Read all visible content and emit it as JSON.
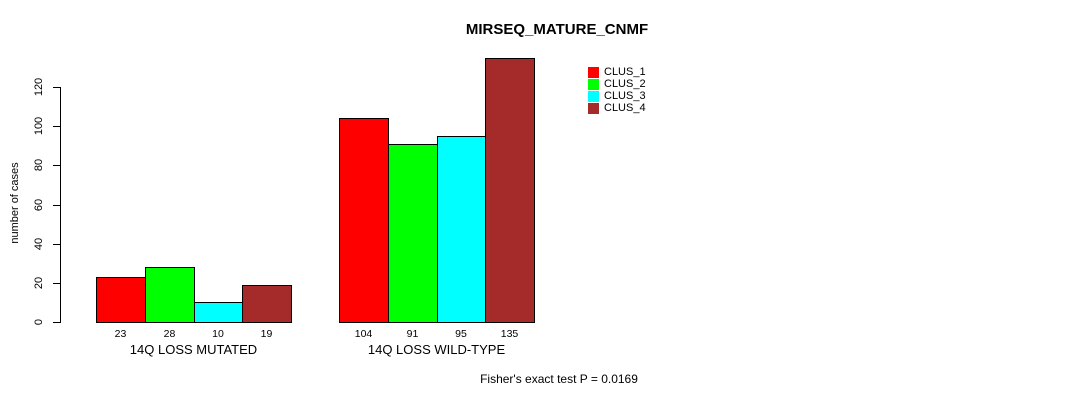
{
  "figure": {
    "background": "#ffffff",
    "axis_color": "#000000",
    "text_color": "#000000"
  },
  "chart_data": {
    "type": "bar",
    "title": "MIRSEQ_MATURE_CNMF",
    "xlabel": "",
    "ylabel": "number of cases",
    "categories": [
      "14Q LOSS MUTATED",
      "14Q LOSS WILD-TYPE"
    ],
    "series": [
      {
        "name": "CLUS_1",
        "color": "#ff0000",
        "values": [
          23,
          104
        ]
      },
      {
        "name": "CLUS_2",
        "color": "#00ff00",
        "values": [
          28,
          91
        ]
      },
      {
        "name": "CLUS_3",
        "color": "#00ffff",
        "values": [
          10,
          95
        ]
      },
      {
        "name": "CLUS_4",
        "color": "#a52a2a",
        "values": [
          19,
          135
        ]
      }
    ],
    "bar_value_labels": [
      [
        "23",
        "28",
        "10",
        "19"
      ],
      [
        "104",
        "91",
        "95",
        "135"
      ]
    ],
    "yticks": [
      0,
      20,
      40,
      60,
      80,
      100,
      120
    ],
    "ylim": [
      0,
      135
    ],
    "grid": false,
    "legend_position": "top-right",
    "legend_entries": [
      {
        "label": "CLUS_1",
        "color": "#ff0000"
      },
      {
        "label": "CLUS_2",
        "color": "#00ff00"
      },
      {
        "label": "CLUS_3",
        "color": "#00ffff"
      },
      {
        "label": "CLUS_4",
        "color": "#a52a2a"
      }
    ],
    "annotation": "Fisher's exact test P = 0.0169"
  }
}
